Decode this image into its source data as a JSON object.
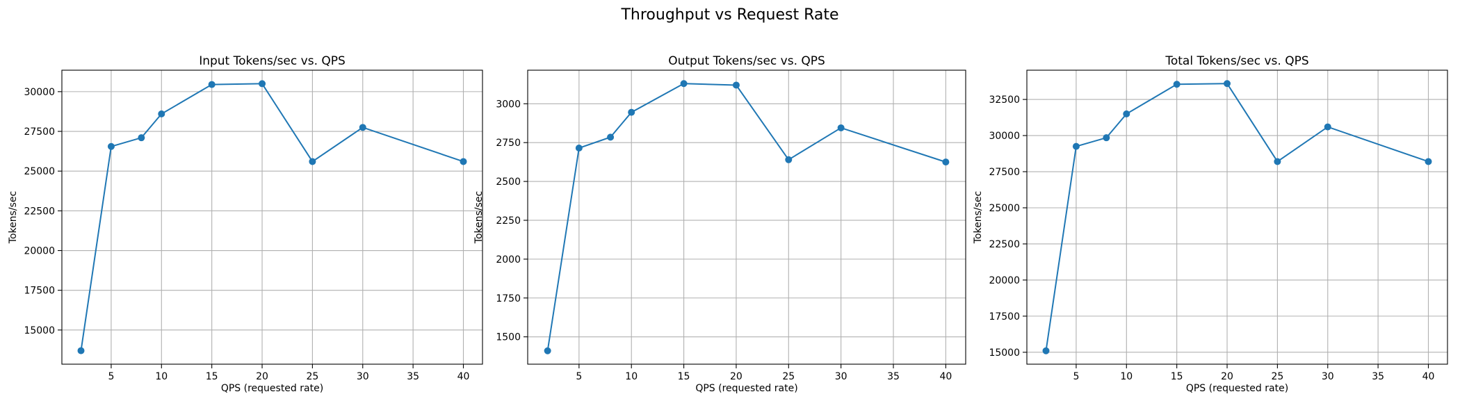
{
  "figure": {
    "suptitle": "Throughput vs Request Rate"
  },
  "chart_data": [
    {
      "type": "line",
      "title": "Input Tokens/sec vs. QPS",
      "xlabel": "QPS (requested rate)",
      "ylabel": "Tokens/sec",
      "x": [
        2,
        5,
        8,
        10,
        15,
        20,
        25,
        30,
        40
      ],
      "series": [
        {
          "values": [
            13700,
            26550,
            27100,
            28600,
            30450,
            30500,
            25600,
            27750,
            25600
          ],
          "color": "#1f77b4",
          "marker": "circle"
        }
      ],
      "xlim": [
        0.1,
        41.9
      ],
      "ylim": [
        12850,
        31350
      ],
      "xticks": [
        5,
        10,
        15,
        20,
        25,
        30,
        35,
        40
      ],
      "yticks": [
        15000,
        17500,
        20000,
        22500,
        25000,
        27500,
        30000
      ],
      "grid": true
    },
    {
      "type": "line",
      "title": "Output Tokens/sec vs. QPS",
      "xlabel": "QPS (requested rate)",
      "ylabel": "Tokens/sec",
      "x": [
        2,
        5,
        8,
        10,
        15,
        20,
        25,
        30,
        40
      ],
      "series": [
        {
          "values": [
            1410,
            2715,
            2785,
            2945,
            3130,
            3120,
            2640,
            2845,
            2625
          ],
          "color": "#1f77b4",
          "marker": "circle"
        }
      ],
      "xlim": [
        0.1,
        41.9
      ],
      "ylim": [
        1324,
        3216
      ],
      "xticks": [
        5,
        10,
        15,
        20,
        25,
        30,
        35,
        40
      ],
      "yticks": [
        1500,
        1750,
        2000,
        2250,
        2500,
        2750,
        3000
      ],
      "grid": true
    },
    {
      "type": "line",
      "title": "Total Tokens/sec vs. QPS",
      "xlabel": "QPS (requested rate)",
      "ylabel": "Tokens/sec",
      "x": [
        2,
        5,
        8,
        10,
        15,
        20,
        25,
        30,
        40
      ],
      "series": [
        {
          "values": [
            15100,
            29250,
            29850,
            31500,
            33550,
            33600,
            28200,
            30600,
            28200
          ],
          "color": "#1f77b4",
          "marker": "circle"
        }
      ],
      "xlim": [
        0.1,
        41.9
      ],
      "ylim": [
        14175,
        34525
      ],
      "xticks": [
        5,
        10,
        15,
        20,
        25,
        30,
        35,
        40
      ],
      "yticks": [
        15000,
        17500,
        20000,
        22500,
        25000,
        27500,
        30000,
        32500
      ],
      "grid": true
    }
  ]
}
